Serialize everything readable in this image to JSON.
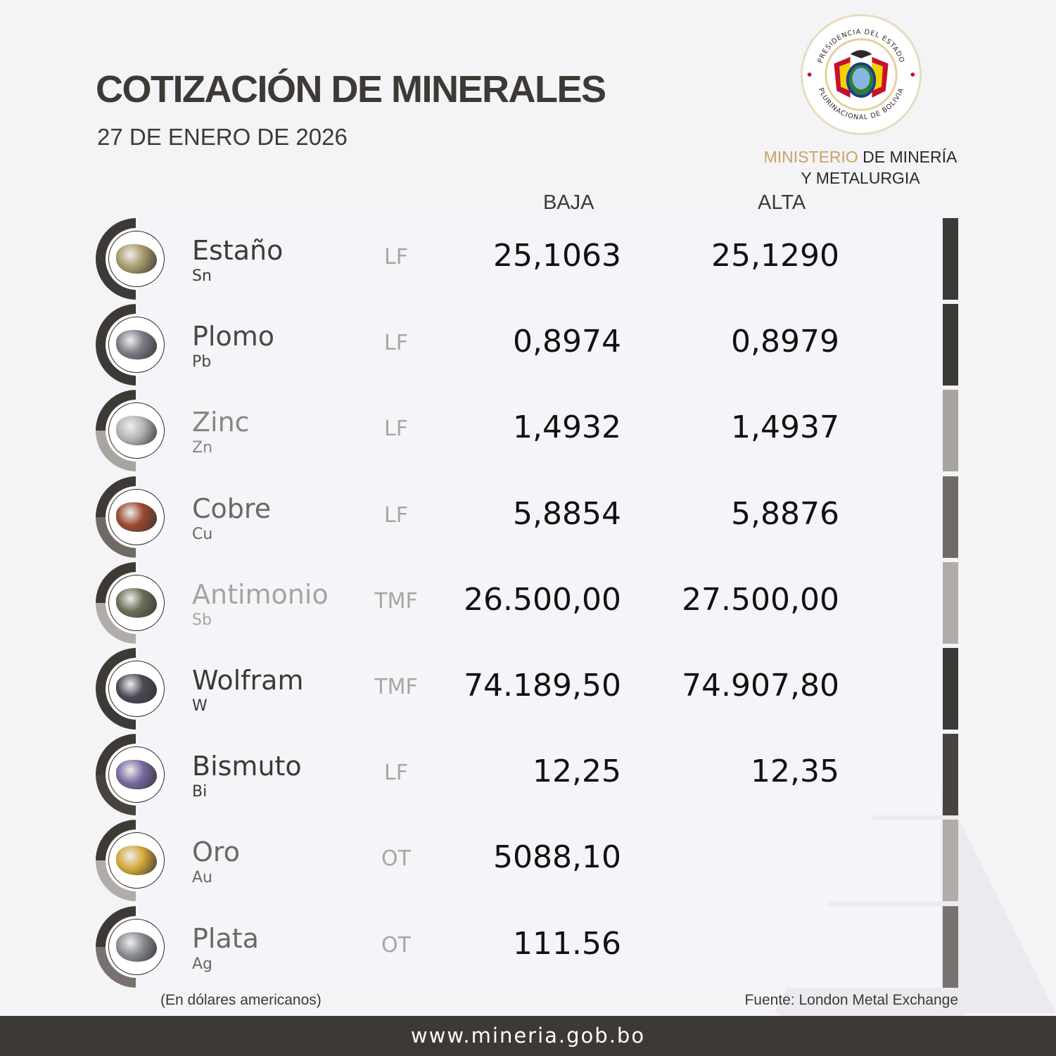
{
  "header": {
    "title": "COTIZACIÓN DE MINERALES",
    "date": "27 DE ENERO DE 2026"
  },
  "logo": {
    "seal_text_top": "PRESIDENCIA DEL ESTADO",
    "seal_text_bottom": "PLURINACIONAL DE BOLIVIA",
    "ministry_gold": "MINISTERIO",
    "ministry_rest": " DE MINERÍA",
    "ministry_line2": "Y METALURGIA"
  },
  "table": {
    "columns": {
      "baja": "BAJA",
      "alta": "ALTA"
    },
    "rows": [
      {
        "name": "Estaño",
        "symbol": "Sn",
        "unit": "LF",
        "baja": "25,1063",
        "alta": "25,1290",
        "text_color": "#3d3a36",
        "accent": "#3c3a37",
        "rock_color": "#a89a6a"
      },
      {
        "name": "Plomo",
        "symbol": "Pb",
        "unit": "LF",
        "baja": "0,8974",
        "alta": "0,8979",
        "text_color": "#4a4744",
        "accent": "#3c3a37",
        "rock_color": "#7c7b86"
      },
      {
        "name": "Zinc",
        "symbol": "Zn",
        "unit": "LF",
        "baja": "1,4932",
        "alta": "1,4937",
        "text_color": "#8a8580",
        "accent": "#a8a5a0",
        "rock_color": "#b5b5b8"
      },
      {
        "name": "Cobre",
        "symbol": "Cu",
        "unit": "LF",
        "baja": "5,8854",
        "alta": "5,8876",
        "text_color": "#6b6763",
        "accent": "#6e6b67",
        "rock_color": "#9a4a30"
      },
      {
        "name": "Antimonio",
        "symbol": "Sb",
        "unit": "TMF",
        "baja": "26.500,00",
        "alta": "27.500,00",
        "text_color": "#a8a3a0",
        "accent": "#b0acaa",
        "rock_color": "#6b6f58"
      },
      {
        "name": "Wolfram",
        "symbol": "W",
        "unit": "TMF",
        "baja": "74.189,50",
        "alta": "74.907,80",
        "text_color": "#3d3a36",
        "accent": "#3c3a37",
        "rock_color": "#4a4a55"
      },
      {
        "name": "Bismuto",
        "symbol": "Bi",
        "unit": "LF",
        "baja": "12,25",
        "alta": "12,35",
        "text_color": "#3d3a36",
        "accent": "#47443f",
        "rock_color": "#7a6aa0"
      },
      {
        "name": "Oro",
        "symbol": "Au",
        "unit": "OT",
        "baja": "5088,10",
        "alta": "",
        "text_color": "#6b6763",
        "accent": "#b0ada8",
        "rock_color": "#d4a83a"
      },
      {
        "name": "Plata",
        "symbol": "Ag",
        "unit": "OT",
        "baja": "111.56",
        "alta": "",
        "text_color": "#6b6763",
        "accent": "#77726f",
        "rock_color": "#8a8c94"
      }
    ]
  },
  "footer": {
    "currency_note": "(En dólares americanos)",
    "source": "Fuente: London Metal Exchange",
    "website": "www.mineria.gob.bo"
  }
}
